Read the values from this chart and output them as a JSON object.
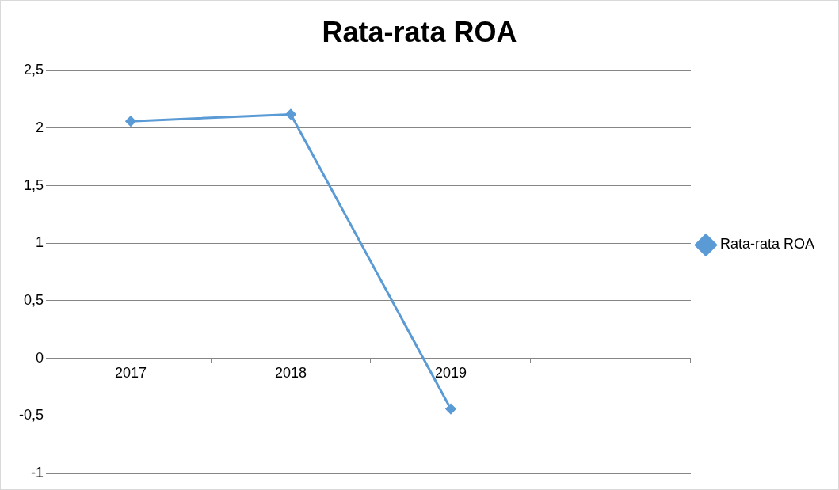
{
  "chart_data": {
    "type": "line",
    "title": "Rata-rata ROA",
    "categories": [
      "2017",
      "2018",
      "2019",
      null
    ],
    "series": [
      {
        "name": "Rata-rata ROA",
        "color": "#5b9bd5",
        "values": [
          2.06,
          2.12,
          -0.44,
          null
        ]
      }
    ],
    "ylim": [
      -1,
      2.5
    ],
    "yticks": [
      {
        "value": -1,
        "label": "-1"
      },
      {
        "value": -0.5,
        "label": "-0,5"
      },
      0,
      {
        "value": 0.5,
        "label": "0,5"
      },
      1,
      {
        "value": 1.5,
        "label": "1,5"
      },
      2,
      {
        "value": 2.5,
        "label": "2,5"
      }
    ],
    "grid": "y",
    "legend": "right",
    "marker": "diamond"
  }
}
